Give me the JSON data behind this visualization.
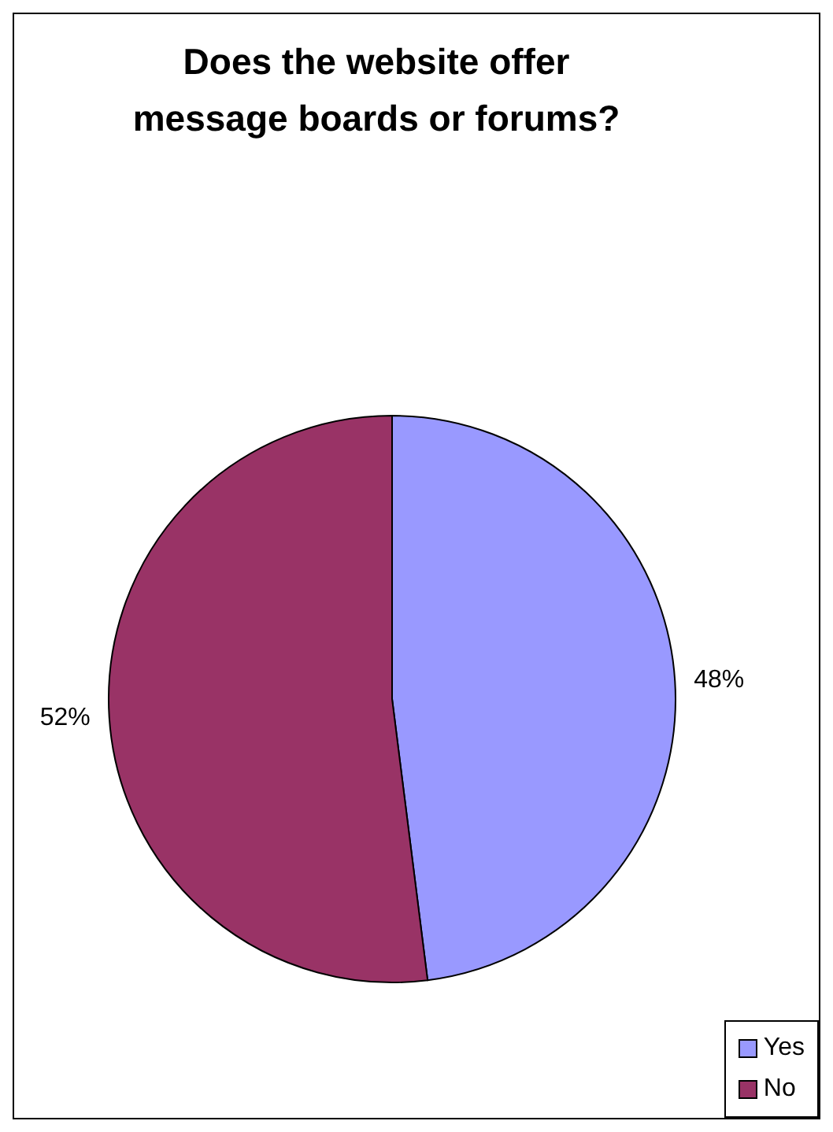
{
  "chart_data": {
    "type": "pie",
    "title": "Does the website offer message boards or forums?",
    "categories": [
      "Yes",
      "No"
    ],
    "values": [
      48,
      52
    ],
    "colors": [
      "#9999ff",
      "#993366"
    ],
    "value_labels": [
      "48%",
      "52%"
    ],
    "legend": "bottom right"
  }
}
